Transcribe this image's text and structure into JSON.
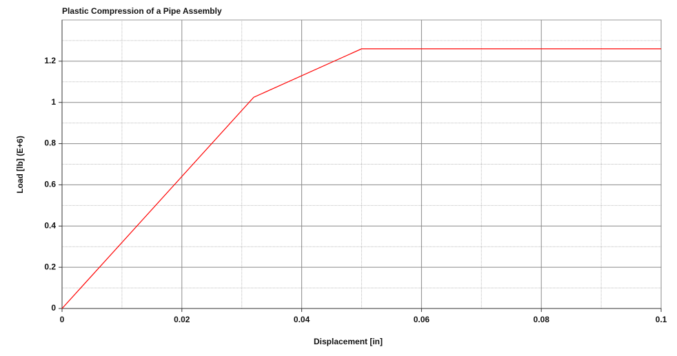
{
  "chart_data": {
    "type": "line",
    "title": "Plastic Compression of a Pipe Assembly",
    "x_label": "Displacement [in]",
    "y_label": "Load [lb] (E+6)",
    "x": [
      0,
      0.032,
      0.05,
      0.1
    ],
    "series": [
      {
        "name": "Load",
        "color": "#ff0000",
        "values": [
          0,
          1.025,
          1.26,
          1.26
        ]
      }
    ],
    "xlim": [
      0,
      0.1
    ],
    "ylim": [
      0,
      1.4
    ],
    "xticks": [
      0,
      0.02,
      0.04,
      0.06,
      0.08,
      0.1
    ],
    "yticks": [
      0,
      0.2,
      0.4,
      0.6,
      0.8,
      1,
      1.2
    ],
    "grid": true,
    "minor_grid": true,
    "legend": false
  }
}
